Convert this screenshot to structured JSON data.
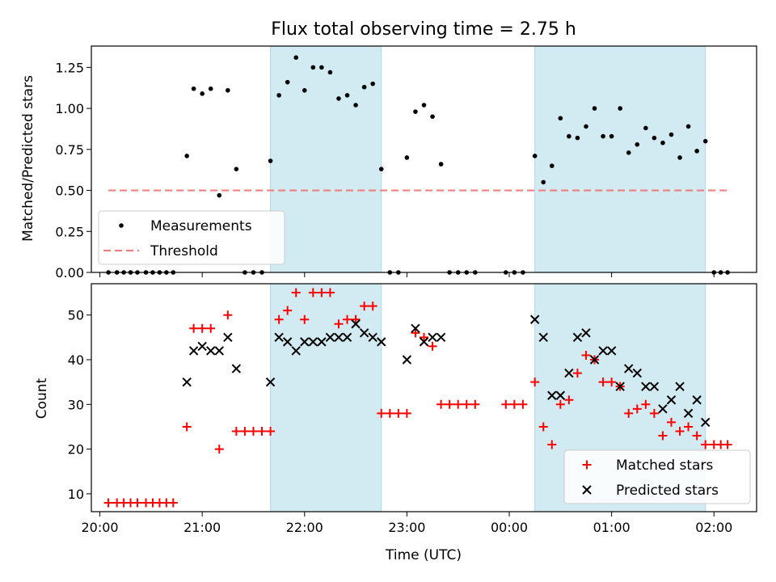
{
  "chart_data": [
    {
      "type": "scatter",
      "title": "Flux total observing time = 2.75 h",
      "xlabel": "",
      "ylabel": "Matched/Predicted stars",
      "xlim": [
        "19:55",
        "02:25"
      ],
      "ylim": [
        0,
        1.38
      ],
      "yticks": [
        "0.00",
        "0.25",
        "0.50",
        "0.75",
        "1.00",
        "1.25"
      ],
      "shaded_intervals": [
        [
          "21:40",
          "22:45"
        ],
        [
          "00:15",
          "01:55"
        ]
      ],
      "series": [
        {
          "name": "Measurements",
          "marker": "dot",
          "color": "#000000",
          "points": [
            [
              "20:05",
              0
            ],
            [
              "20:10",
              0
            ],
            [
              "20:14",
              0
            ],
            [
              "20:18",
              0
            ],
            [
              "20:22",
              0
            ],
            [
              "20:27",
              0
            ],
            [
              "20:31",
              0
            ],
            [
              "20:35",
              0
            ],
            [
              "20:39",
              0
            ],
            [
              "20:43",
              0
            ],
            [
              "20:51",
              0.71
            ],
            [
              "20:55",
              1.12
            ],
            [
              "21:00",
              1.09
            ],
            [
              "21:05",
              1.12
            ],
            [
              "21:10",
              0.47
            ],
            [
              "21:15",
              1.11
            ],
            [
              "21:20",
              0.63
            ],
            [
              "21:25",
              0
            ],
            [
              "21:30",
              0
            ],
            [
              "21:35",
              0
            ],
            [
              "21:40",
              0.68
            ],
            [
              "21:45",
              1.08
            ],
            [
              "21:50",
              1.16
            ],
            [
              "21:55",
              1.31
            ],
            [
              "22:00",
              1.11
            ],
            [
              "22:05",
              1.25
            ],
            [
              "22:10",
              1.25
            ],
            [
              "22:15",
              1.22
            ],
            [
              "22:20",
              1.06
            ],
            [
              "22:25",
              1.08
            ],
            [
              "22:30",
              1.02
            ],
            [
              "22:35",
              1.13
            ],
            [
              "22:40",
              1.15
            ],
            [
              "22:45",
              0.63
            ],
            [
              "22:50",
              0
            ],
            [
              "22:55",
              0
            ],
            [
              "23:00",
              0.7
            ],
            [
              "23:05",
              0.98
            ],
            [
              "23:10",
              1.02
            ],
            [
              "23:15",
              0.95
            ],
            [
              "23:20",
              0.66
            ],
            [
              "23:25",
              0
            ],
            [
              "23:30",
              0
            ],
            [
              "23:35",
              0
            ],
            [
              "23:40",
              0
            ],
            [
              "23:58",
              0
            ],
            [
              "00:03",
              0
            ],
            [
              "00:08",
              0
            ],
            [
              "00:15",
              0.71
            ],
            [
              "00:20",
              0.55
            ],
            [
              "00:25",
              0.65
            ],
            [
              "00:30",
              0.94
            ],
            [
              "00:35",
              0.83
            ],
            [
              "00:40",
              0.82
            ],
            [
              "00:45",
              0.89
            ],
            [
              "00:50",
              1.0
            ],
            [
              "00:55",
              0.83
            ],
            [
              "01:00",
              0.83
            ],
            [
              "01:05",
              1.0
            ],
            [
              "01:10",
              0.73
            ],
            [
              "01:15",
              0.78
            ],
            [
              "01:20",
              0.88
            ],
            [
              "01:25",
              0.82
            ],
            [
              "01:30",
              0.79
            ],
            [
              "01:35",
              0.84
            ],
            [
              "01:40",
              0.7
            ],
            [
              "01:45",
              0.89
            ],
            [
              "01:50",
              0.74
            ],
            [
              "01:55",
              0.8
            ],
            [
              "02:00",
              0
            ],
            [
              "02:04",
              0
            ],
            [
              "02:08",
              0
            ]
          ]
        },
        {
          "name": "Threshold",
          "marker": "dashed-line",
          "color": "#f08080",
          "points": [
            [
              "20:05",
              0.5
            ],
            [
              "02:10",
              0.5
            ]
          ]
        }
      ],
      "legend": "lower-left",
      "grid": false
    },
    {
      "type": "scatter",
      "title": "",
      "xlabel": "Time (UTC)",
      "ylabel": "Count",
      "xlim": [
        "19:55",
        "02:25"
      ],
      "ylim": [
        6,
        57
      ],
      "yticks": [
        "10",
        "20",
        "30",
        "40",
        "50"
      ],
      "xticks": [
        "20:00",
        "21:00",
        "22:00",
        "23:00",
        "00:00",
        "01:00",
        "02:00"
      ],
      "shaded_intervals": [
        [
          "21:40",
          "22:45"
        ],
        [
          "00:15",
          "01:55"
        ]
      ],
      "series": [
        {
          "name": "Matched stars",
          "marker": "plus",
          "color": "#ff0000",
          "points": [
            [
              "20:05",
              8
            ],
            [
              "20:10",
              8
            ],
            [
              "20:14",
              8
            ],
            [
              "20:18",
              8
            ],
            [
              "20:22",
              8
            ],
            [
              "20:27",
              8
            ],
            [
              "20:31",
              8
            ],
            [
              "20:35",
              8
            ],
            [
              "20:39",
              8
            ],
            [
              "20:43",
              8
            ],
            [
              "20:51",
              25
            ],
            [
              "20:55",
              47
            ],
            [
              "21:00",
              47
            ],
            [
              "21:05",
              47
            ],
            [
              "21:10",
              20
            ],
            [
              "21:15",
              50
            ],
            [
              "21:20",
              24
            ],
            [
              "21:25",
              24
            ],
            [
              "21:30",
              24
            ],
            [
              "21:35",
              24
            ],
            [
              "21:40",
              24
            ],
            [
              "21:45",
              49
            ],
            [
              "21:50",
              51
            ],
            [
              "21:55",
              55
            ],
            [
              "22:00",
              49
            ],
            [
              "22:05",
              55
            ],
            [
              "22:10",
              55
            ],
            [
              "22:15",
              55
            ],
            [
              "22:20",
              48
            ],
            [
              "22:25",
              49
            ],
            [
              "22:30",
              49
            ],
            [
              "22:35",
              52
            ],
            [
              "22:40",
              52
            ],
            [
              "22:45",
              28
            ],
            [
              "22:50",
              28
            ],
            [
              "22:55",
              28
            ],
            [
              "23:00",
              28
            ],
            [
              "23:05",
              46
            ],
            [
              "23:10",
              45
            ],
            [
              "23:15",
              43
            ],
            [
              "23:20",
              30
            ],
            [
              "23:25",
              30
            ],
            [
              "23:30",
              30
            ],
            [
              "23:35",
              30
            ],
            [
              "23:40",
              30
            ],
            [
              "23:58",
              30
            ],
            [
              "00:03",
              30
            ],
            [
              "00:08",
              30
            ],
            [
              "00:15",
              35
            ],
            [
              "00:20",
              25
            ],
            [
              "00:25",
              21
            ],
            [
              "00:30",
              30
            ],
            [
              "00:35",
              31
            ],
            [
              "00:40",
              37
            ],
            [
              "00:45",
              41
            ],
            [
              "00:50",
              40
            ],
            [
              "00:55",
              35
            ],
            [
              "01:00",
              35
            ],
            [
              "01:05",
              34
            ],
            [
              "01:10",
              28
            ],
            [
              "01:15",
              29
            ],
            [
              "01:20",
              30
            ],
            [
              "01:25",
              28
            ],
            [
              "01:30",
              23
            ],
            [
              "01:35",
              26
            ],
            [
              "01:40",
              24
            ],
            [
              "01:45",
              25
            ],
            [
              "01:50",
              23
            ],
            [
              "01:55",
              21
            ],
            [
              "02:00",
              21
            ],
            [
              "02:04",
              21
            ],
            [
              "02:08",
              21
            ]
          ]
        },
        {
          "name": "Predicted stars",
          "marker": "x",
          "color": "#000000",
          "points": [
            [
              "20:51",
              35
            ],
            [
              "20:55",
              42
            ],
            [
              "21:00",
              43
            ],
            [
              "21:05",
              42
            ],
            [
              "21:10",
              42
            ],
            [
              "21:15",
              45
            ],
            [
              "21:20",
              38
            ],
            [
              "21:40",
              35
            ],
            [
              "21:45",
              45
            ],
            [
              "21:50",
              44
            ],
            [
              "21:55",
              42
            ],
            [
              "22:00",
              44
            ],
            [
              "22:05",
              44
            ],
            [
              "22:10",
              44
            ],
            [
              "22:15",
              45
            ],
            [
              "22:20",
              45
            ],
            [
              "22:25",
              45
            ],
            [
              "22:30",
              48
            ],
            [
              "22:35",
              46
            ],
            [
              "22:40",
              45
            ],
            [
              "22:45",
              44
            ],
            [
              "23:00",
              40
            ],
            [
              "23:05",
              47
            ],
            [
              "23:10",
              44
            ],
            [
              "23:15",
              45
            ],
            [
              "23:20",
              45
            ],
            [
              "00:15",
              49
            ],
            [
              "00:20",
              45
            ],
            [
              "00:25",
              32
            ],
            [
              "00:30",
              32
            ],
            [
              "00:35",
              37
            ],
            [
              "00:40",
              45
            ],
            [
              "00:45",
              46
            ],
            [
              "00:50",
              40
            ],
            [
              "00:55",
              42
            ],
            [
              "01:00",
              42
            ],
            [
              "01:05",
              34
            ],
            [
              "01:10",
              38
            ],
            [
              "01:15",
              37
            ],
            [
              "01:20",
              34
            ],
            [
              "01:25",
              34
            ],
            [
              "01:30",
              29
            ],
            [
              "01:35",
              31
            ],
            [
              "01:40",
              34
            ],
            [
              "01:45",
              28
            ],
            [
              "01:50",
              31
            ],
            [
              "01:55",
              26
            ]
          ]
        }
      ],
      "legend": "lower-right",
      "grid": false
    }
  ],
  "colors": {
    "shade": "#add8e6",
    "threshold": "#f08080",
    "matched": "#ff0000",
    "predicted": "#000000"
  }
}
